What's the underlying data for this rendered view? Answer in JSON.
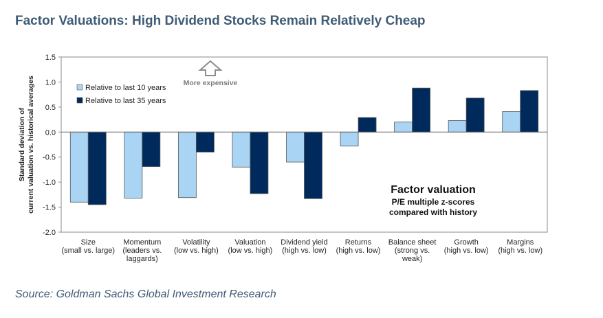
{
  "header": {
    "title": "Factor Valuations: High Dividend Stocks Remain Relatively Cheap"
  },
  "footer": {
    "source": "Source: Goldman Sachs Global Investment Research"
  },
  "colors": {
    "series1": "#a9d4f4",
    "series2": "#002a5c",
    "title": "#3f5b75",
    "arrow": "#8c8c8c"
  },
  "chart_data": {
    "type": "bar",
    "ylabel": [
      "Standard deviation of",
      "current valuation vs. historical averages"
    ],
    "ylim": [
      -2.0,
      1.5
    ],
    "yticks": [
      "1.5",
      "1.0",
      "0.5",
      "0.0",
      "-0.5",
      "-1.0",
      "-1.5",
      "-2.0"
    ],
    "categories": [
      [
        "Size",
        "(small vs. large)"
      ],
      [
        "Momentum",
        "(leaders vs.",
        "laggards)"
      ],
      [
        "Volatility",
        "(low vs. high)"
      ],
      [
        "Valuation",
        "(low vs. high)"
      ],
      [
        "Dividend yield",
        "(high vs. low)"
      ],
      [
        "Returns",
        "(high vs. low)"
      ],
      [
        "Balance sheet",
        "(strong vs.",
        "weak)"
      ],
      [
        "Growth",
        "(high vs. low)"
      ],
      [
        "Margins",
        "(high vs. low)"
      ]
    ],
    "series": [
      {
        "name": "Relative to last 10 years",
        "values": [
          -1.4,
          -1.32,
          -1.31,
          -0.7,
          -0.6,
          -0.28,
          0.2,
          0.23,
          0.41
        ]
      },
      {
        "name": "Relative to last 35 years",
        "values": [
          -1.45,
          -0.69,
          -0.4,
          -1.23,
          -1.33,
          0.29,
          0.88,
          0.68,
          0.83
        ]
      }
    ],
    "annotation": "More expensive",
    "inset_title": "Factor valuation",
    "inset_subtitle": [
      "P/E multiple z-scores",
      "compared with history"
    ],
    "legend": "top-left",
    "grid": false
  }
}
